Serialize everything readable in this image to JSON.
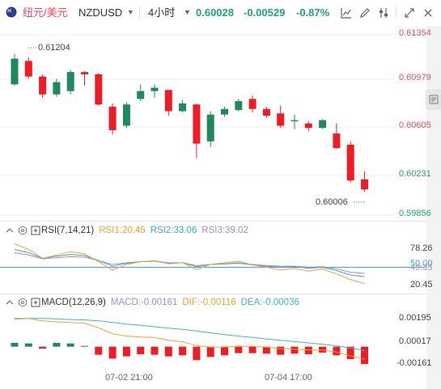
{
  "toolbar": {
    "pair_name": "纽元/美元",
    "symbol": "NZDUSD",
    "symbol_caret": "▼",
    "timeframe": "4小时",
    "timeframe_caret": "▼",
    "last_price": "0.60028",
    "change": "-0.00529",
    "change_pct": "-0.87%"
  },
  "colors": {
    "up": "#1e8a5c",
    "down": "#ee1c25",
    "positive_text": "#20a37a",
    "pair_name": "#e84a5f",
    "rsi1": "#f5a030",
    "rsi2": "#3aa9c8",
    "rsi3": "#a98ac9",
    "macd_line": "#f5a030",
    "dea_line": "#3ab8c8"
  },
  "price_axis": {
    "ticks": [
      "0.61354",
      "0.60979",
      "0.60605",
      "0.60231",
      "0.59856"
    ],
    "high_label": "0.61204",
    "low_label": "0.60006"
  },
  "rsi": {
    "title": "RSI(7,14,21)",
    "rsi1_label": "RSI1:20.45",
    "rsi2_label": "RSI2:33.06",
    "rsi3_label": "RSI3:39.02",
    "ticks": [
      "78.26",
      "50.00",
      "49.35",
      "20.45"
    ]
  },
  "macd": {
    "title": "MACD(12,26,9)",
    "macd_label": "MACD:-0.00161",
    "dif_label": "DIF:-0.00116",
    "dea_label": "DEA:-0.00036",
    "ticks": [
      "0.00195",
      "0.00017",
      "-0.00161"
    ]
  },
  "time_axis": [
    "07-02 21:00",
    "07-04 17:00"
  ],
  "chart_data": {
    "type": "candlestick",
    "title": "",
    "ylim": [
      0.598,
      0.6145
    ],
    "candles": [
      {
        "o": 0.6097,
        "h": 0.6124,
        "l": 0.6096,
        "c": 0.612
      },
      {
        "o": 0.6118,
        "h": 0.6121,
        "l": 0.6102,
        "c": 0.6104
      },
      {
        "o": 0.6104,
        "h": 0.6106,
        "l": 0.6085,
        "c": 0.6088
      },
      {
        "o": 0.6088,
        "h": 0.6102,
        "l": 0.6086,
        "c": 0.6099
      },
      {
        "o": 0.6091,
        "h": 0.611,
        "l": 0.6088,
        "c": 0.6108
      },
      {
        "o": 0.6108,
        "h": 0.6109,
        "l": 0.6096,
        "c": 0.6106
      },
      {
        "o": 0.6106,
        "h": 0.6107,
        "l": 0.6078,
        "c": 0.6079
      },
      {
        "o": 0.6077,
        "h": 0.608,
        "l": 0.6052,
        "c": 0.6056
      },
      {
        "o": 0.606,
        "h": 0.6081,
        "l": 0.6058,
        "c": 0.6079
      },
      {
        "o": 0.6084,
        "h": 0.6097,
        "l": 0.6082,
        "c": 0.6091
      },
      {
        "o": 0.6091,
        "h": 0.6097,
        "l": 0.6085,
        "c": 0.6094
      },
      {
        "o": 0.6092,
        "h": 0.6092,
        "l": 0.6069,
        "c": 0.6073
      },
      {
        "o": 0.6073,
        "h": 0.6083,
        "l": 0.6072,
        "c": 0.608
      },
      {
        "o": 0.6079,
        "h": 0.608,
        "l": 0.6031,
        "c": 0.6044
      },
      {
        "o": 0.6046,
        "h": 0.6073,
        "l": 0.6041,
        "c": 0.607
      },
      {
        "o": 0.607,
        "h": 0.6077,
        "l": 0.6068,
        "c": 0.6075
      },
      {
        "o": 0.6074,
        "h": 0.6084,
        "l": 0.6073,
        "c": 0.6082
      },
      {
        "o": 0.6084,
        "h": 0.6087,
        "l": 0.6072,
        "c": 0.6075
      },
      {
        "o": 0.6075,
        "h": 0.6077,
        "l": 0.6067,
        "c": 0.6069
      },
      {
        "o": 0.6071,
        "h": 0.6078,
        "l": 0.6058,
        "c": 0.606
      },
      {
        "o": 0.6064,
        "h": 0.607,
        "l": 0.6057,
        "c": 0.6065
      },
      {
        "o": 0.6062,
        "h": 0.6064,
        "l": 0.6055,
        "c": 0.6058
      },
      {
        "o": 0.6058,
        "h": 0.6066,
        "l": 0.6057,
        "c": 0.6065
      },
      {
        "o": 0.6053,
        "h": 0.6062,
        "l": 0.6039,
        "c": 0.604
      },
      {
        "o": 0.6043,
        "h": 0.6046,
        "l": 0.6009,
        "c": 0.6011
      },
      {
        "o": 0.6012,
        "h": 0.6019,
        "l": 0.6001,
        "c": 0.6003
      }
    ],
    "rsi_ylim": [
      10,
      100
    ],
    "rsi_reference": 50,
    "rsi1": [
      92,
      82,
      66,
      72,
      78,
      74,
      60,
      45,
      55,
      60,
      62,
      56,
      58,
      46,
      55,
      58,
      61,
      54,
      50,
      45,
      48,
      43,
      47,
      38,
      28,
      20.45
    ],
    "rsi2": [
      82,
      76,
      66,
      70,
      73,
      71,
      62,
      52,
      57,
      60,
      61,
      57,
      58,
      51,
      55,
      56,
      58,
      54,
      52,
      50,
      51,
      48,
      50,
      44,
      36,
      33.06
    ],
    "rsi3": [
      76,
      72,
      65,
      67,
      69,
      68,
      62,
      55,
      58,
      60,
      61,
      58,
      58,
      53,
      55,
      56,
      57,
      55,
      53,
      52,
      52,
      50,
      51,
      47,
      41,
      39.02
    ],
    "macd_ylim": [
      -0.0022,
      0.0032
    ],
    "macd_hist": [
      0.00035,
      0.0003,
      -0.00018,
      0.00035,
      0.0003,
      8e-05,
      -0.00075,
      -0.0011,
      -0.0009,
      -0.0007,
      -0.00075,
      -0.0009,
      -0.0008,
      -0.00125,
      -0.00095,
      -0.0008,
      -0.0006,
      -0.0006,
      -0.00065,
      -0.00075,
      -0.00065,
      -0.0007,
      -0.00055,
      -0.0008,
      -0.00115,
      -0.00161
    ],
    "dif": [
      0.00255,
      0.00262,
      0.0024,
      0.0023,
      0.00225,
      0.00218,
      0.00175,
      0.0012,
      0.00098,
      0.0009,
      0.00085,
      0.0006,
      0.00045,
      0.0001,
      -5e-05,
      -3e-05,
      5e-05,
      2e-05,
      -5e-05,
      -0.00018,
      -0.00022,
      -0.0003,
      -0.00032,
      -0.0005,
      -0.00085,
      -0.00116
    ],
    "dea": [
      0.00262,
      0.00262,
      0.00262,
      0.00258,
      0.00252,
      0.00248,
      0.0024,
      0.00225,
      0.0021,
      0.00198,
      0.00185,
      0.00172,
      0.0016,
      0.00145,
      0.00128,
      0.00112,
      0.00098,
      0.00085,
      0.00072,
      0.0006,
      0.00047,
      0.00035,
      0.00022,
      8e-05,
      -0.00012,
      -0.00036
    ]
  }
}
